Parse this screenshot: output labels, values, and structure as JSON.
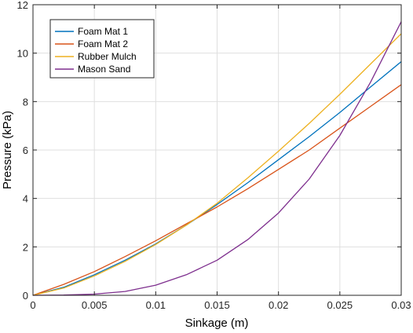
{
  "chart_data": {
    "type": "line",
    "title": "",
    "xlabel": "Sinkage (m)",
    "ylabel": "Pressure (kPa)",
    "xlim": [
      0,
      0.03
    ],
    "ylim": [
      0,
      12
    ],
    "xticks": [
      0,
      0.005,
      0.01,
      0.015,
      0.02,
      0.025,
      0.03
    ],
    "xtick_labels": [
      "0",
      "0.005",
      "0.01",
      "0.015",
      "0.02",
      "0.025",
      "0.03"
    ],
    "yticks": [
      0,
      2,
      4,
      6,
      8,
      10,
      12
    ],
    "ytick_labels": [
      "0",
      "2",
      "4",
      "6",
      "8",
      "10",
      "12"
    ],
    "grid": true,
    "legend_position": "top-left",
    "series": [
      {
        "name": "Foam Mat 1",
        "color": "#0072BD",
        "x": [
          0,
          0.0025,
          0.005,
          0.0075,
          0.01,
          0.0125,
          0.015,
          0.0175,
          0.02,
          0.0225,
          0.025,
          0.0275,
          0.03
        ],
        "y": [
          0,
          0.33,
          0.85,
          1.45,
          2.12,
          2.9,
          3.75,
          4.65,
          5.6,
          6.55,
          7.55,
          8.6,
          9.65
        ]
      },
      {
        "name": "Foam Mat 2",
        "color": "#D95319",
        "x": [
          0,
          0.0025,
          0.005,
          0.0075,
          0.01,
          0.0125,
          0.015,
          0.0175,
          0.02,
          0.0225,
          0.025,
          0.0275,
          0.03
        ],
        "y": [
          0,
          0.45,
          0.98,
          1.6,
          2.25,
          2.95,
          3.65,
          4.4,
          5.2,
          6.0,
          6.9,
          7.8,
          8.7
        ]
      },
      {
        "name": "Rubber Mulch",
        "color": "#EDB120",
        "x": [
          0,
          0.0025,
          0.005,
          0.0075,
          0.01,
          0.0125,
          0.015,
          0.0175,
          0.02,
          0.0225,
          0.025,
          0.0275,
          0.03
        ],
        "y": [
          0,
          0.3,
          0.8,
          1.4,
          2.1,
          2.9,
          3.8,
          4.85,
          5.95,
          7.1,
          8.3,
          9.55,
          10.8
        ]
      },
      {
        "name": "Mason Sand",
        "color": "#7E2F8E",
        "x": [
          0,
          0.0025,
          0.005,
          0.0075,
          0.01,
          0.0125,
          0.015,
          0.0175,
          0.02,
          0.0225,
          0.025,
          0.0275,
          0.03
        ],
        "y": [
          0,
          0.01,
          0.05,
          0.16,
          0.42,
          0.85,
          1.45,
          2.3,
          3.4,
          4.8,
          6.6,
          8.8,
          11.3
        ]
      }
    ]
  }
}
